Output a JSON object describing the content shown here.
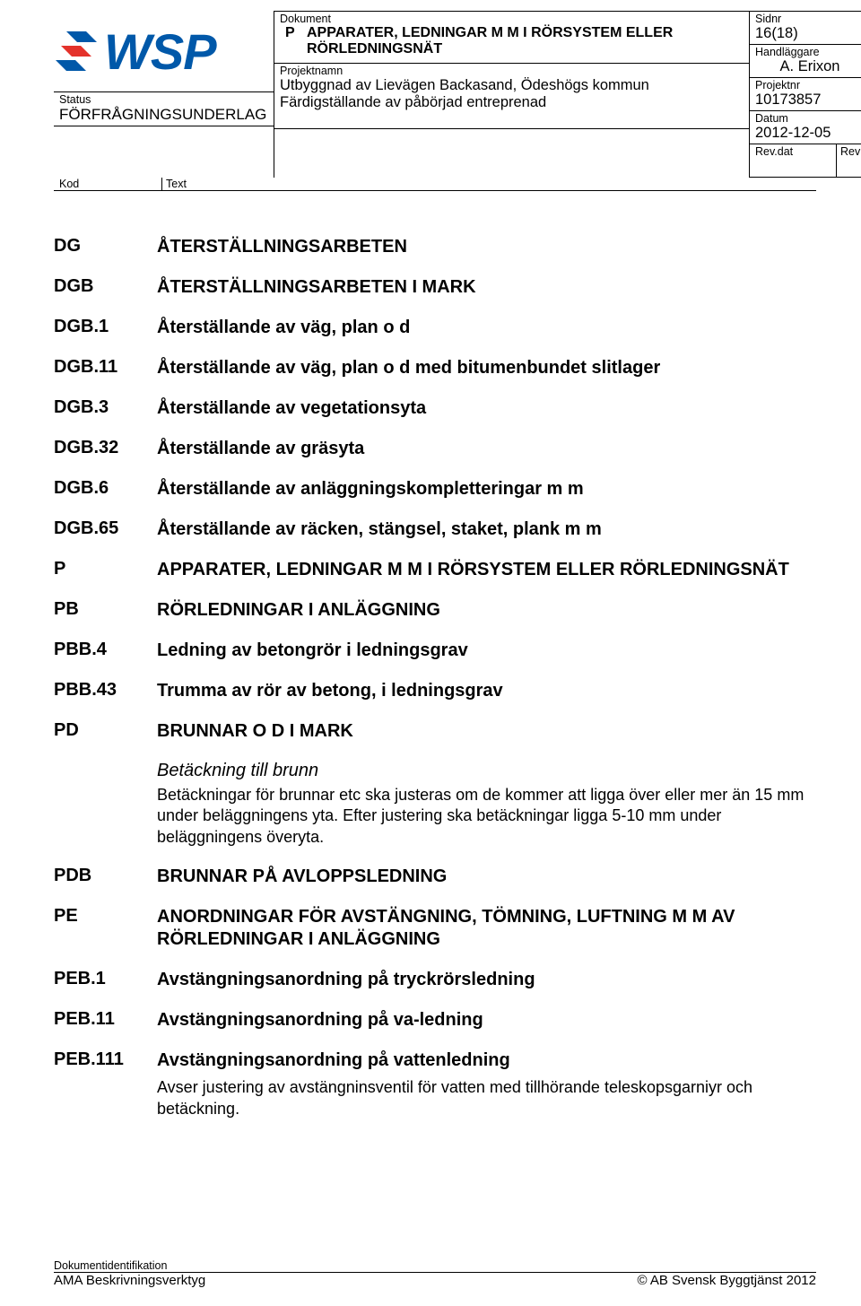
{
  "header": {
    "dokument_label": "Dokument",
    "doc_code": "P",
    "doc_title_line1": "APPARATER, LEDNINGAR M M I RÖRSYSTEM ELLER",
    "doc_title_line2": "RÖRLEDNINGSNÄT",
    "projektnamn_label": "Projektnamn",
    "project_line1": "Utbyggnad av Lievägen Backasand, Ödeshögs kommun",
    "project_line2": "Färdigställande av påbörjad entreprenad",
    "sidnr_label": "Sidnr",
    "sidnr": "16(18)",
    "handlaggare_label": "Handläggare",
    "handlaggare": "A. Erixon",
    "projektnr_label": "Projektnr",
    "projektnr": "10173857",
    "datum_label": "Datum",
    "datum": "2012-12-05",
    "revdat_label": "Rev.dat",
    "rev_label": "Rev",
    "status_label": "Status",
    "status": "FÖRFRÅGNINGSUNDERLAG",
    "kod_label": "Kod",
    "text_label": "Text",
    "logo_text": "WSP"
  },
  "entries": [
    {
      "code": "DG",
      "title": "ÅTERSTÄLLNINGSARBETEN"
    },
    {
      "code": "DGB",
      "title": "ÅTERSTÄLLNINGSARBETEN I MARK"
    },
    {
      "code": "DGB.1",
      "title": "Återställande av väg, plan o d"
    },
    {
      "code": "DGB.11",
      "title": "Återställande av väg, plan o d med bitumenbundet slitlager"
    },
    {
      "code": "DGB.3",
      "title": "Återställande av vegetationsyta"
    },
    {
      "code": "DGB.32",
      "title": "Återställande av gräsyta"
    },
    {
      "code": "DGB.6",
      "title": "Återställande av anläggningskompletteringar m m"
    },
    {
      "code": "DGB.65",
      "title": "Återställande av räcken, stängsel, staket, plank m m"
    },
    {
      "code": "P",
      "title": "APPARATER, LEDNINGAR M M I RÖRSYSTEM ELLER RÖRLEDNINGSNÄT"
    },
    {
      "code": "PB",
      "title": "RÖRLEDNINGAR I ANLÄGGNING"
    },
    {
      "code": "PBB.4",
      "title": "Ledning av betongrör i ledningsgrav"
    },
    {
      "code": "PBB.43",
      "title": "Trumma av rör av betong, i ledningsgrav"
    },
    {
      "code": "PD",
      "title": "BRUNNAR O D I MARK"
    }
  ],
  "pd_block": {
    "subhead": "Betäckning till brunn",
    "para": "Betäckningar för brunnar etc ska justeras om de kommer att ligga över eller mer än 15 mm under beläggningens yta. Efter justering ska betäckningar ligga 5-10 mm under beläggningens överyta."
  },
  "entries2": [
    {
      "code": "PDB",
      "title": "BRUNNAR PÅ AVLOPPSLEDNING"
    },
    {
      "code": "PE",
      "title": "ANORDNINGAR FÖR AVSTÄNGNING, TÖMNING, LUFTNING M M AV RÖRLEDNINGAR I ANLÄGGNING"
    },
    {
      "code": "PEB.1",
      "title": "Avstängningsanordning på tryckrörsledning"
    },
    {
      "code": "PEB.11",
      "title": "Avstängningsanordning på va-ledning"
    },
    {
      "code": "PEB.111",
      "title": "Avstängningsanordning på vattenledning"
    }
  ],
  "peb111_para": "Avser justering av avstängninsventil för vatten med tillhörande teleskopsgarniyr och betäckning.",
  "footer": {
    "doc_id_label": "Dokumentidentifikation",
    "left": "AMA Beskrivningsverktyg",
    "right": "© AB Svensk Byggtjänst 2012"
  }
}
